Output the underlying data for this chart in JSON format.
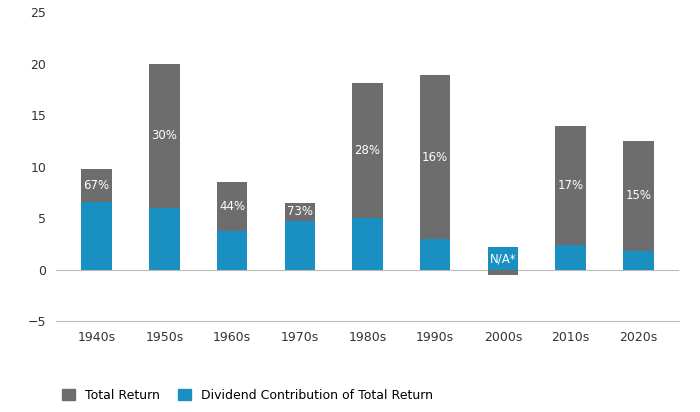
{
  "categories": [
    "1940s",
    "1950s",
    "1960s",
    "1970s",
    "1980s",
    "1990s",
    "2000s",
    "2010s",
    "2020s"
  ],
  "total_return": [
    9.8,
    20.0,
    8.5,
    6.5,
    18.1,
    18.9,
    -0.5,
    14.0,
    12.5
  ],
  "dividend_contribution": [
    6.6,
    6.0,
    3.75,
    4.75,
    5.05,
    3.0,
    2.2,
    2.4,
    1.875
  ],
  "dividend_labels": [
    "67%",
    "30%",
    "44%",
    "73%",
    "28%",
    "16%",
    "N/A*",
    "17%",
    "15%"
  ],
  "bar_color_gray": "#6d6d6d",
  "bar_color_blue": "#1a8fc1",
  "background_color": "#ffffff",
  "ylim": [
    -5,
    25
  ],
  "yticks": [
    -5,
    0,
    5,
    10,
    15,
    20,
    25
  ],
  "legend_labels": [
    "Total Return",
    "Dividend Contribution of Total Return"
  ],
  "figsize": [
    7.0,
    4.12
  ],
  "dpi": 100,
  "bar_width": 0.45
}
